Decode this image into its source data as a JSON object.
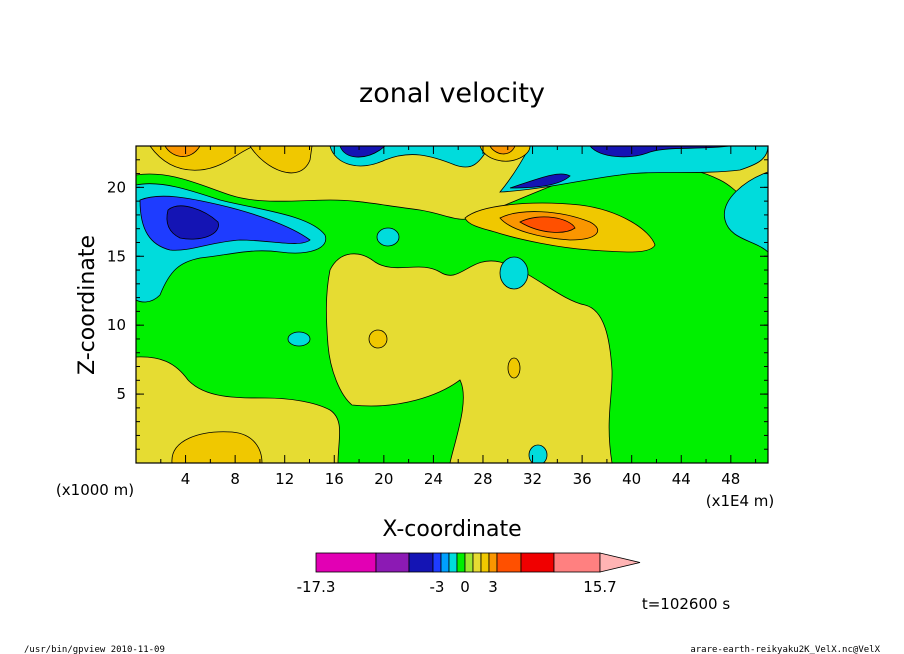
{
  "chart_data": {
    "type": "heatmap",
    "title": "zonal velocity",
    "xlabel": "X-coordinate",
    "ylabel": "Z-coordinate",
    "x_unit_left": "(x1000 m)",
    "x_unit_right": "(x1E4 m)",
    "xlim": [
      0,
      51
    ],
    "ylim": [
      0,
      23
    ],
    "x_ticks": [
      4,
      8,
      12,
      16,
      20,
      24,
      28,
      32,
      36,
      40,
      44,
      48
    ],
    "y_ticks": [
      5,
      10,
      15,
      20
    ],
    "grid": false,
    "colorbar": {
      "colors": [
        "#e200b4",
        "#8c1ab4",
        "#1414b4",
        "#1e3cff",
        "#00a0ff",
        "#00dcdc",
        "#00f000",
        "#a0e632",
        "#e6dc32",
        "#f0c800",
        "#fa9600",
        "#ff5000",
        "#f00000",
        "#ff8080"
      ],
      "over_color": "#ffb4b4",
      "tick_labels": [
        "-17.3",
        "-3",
        "0",
        "3",
        "15.7"
      ],
      "placement": "bottom-center"
    },
    "time_label": "t=102600 s"
  },
  "footer": {
    "left": "/usr/bin/gpview  2010-11-09",
    "right": "arare-earth-reikyaku2K_VelX.nc@VelX"
  }
}
